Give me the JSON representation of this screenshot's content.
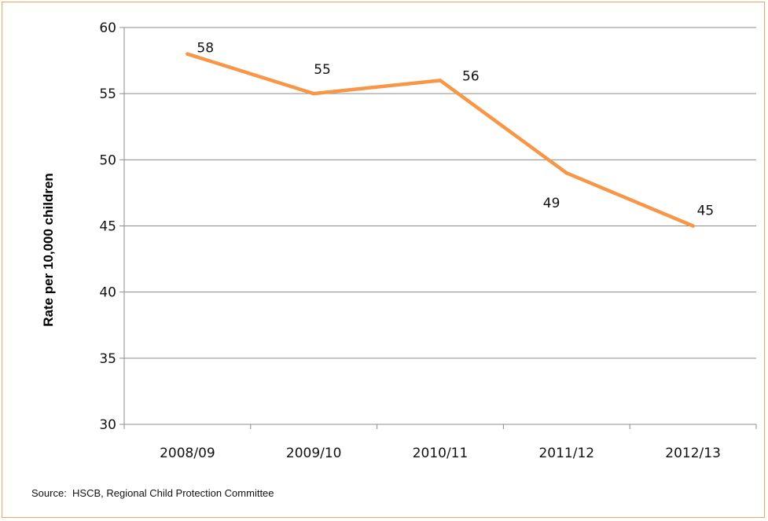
{
  "chart_data": {
    "type": "line",
    "categories": [
      "2008/09",
      "2009/10",
      "2010/11",
      "2011/12",
      "2012/13"
    ],
    "series": [
      {
        "values": [
          58,
          55,
          56,
          49,
          45
        ],
        "color": "#f79646"
      }
    ],
    "data_labels": [
      "58",
      "55",
      "56",
      "49",
      "45"
    ],
    "title": "",
    "xlabel": "",
    "ylabel": "Rate per 10,000 children",
    "ylim": [
      30,
      60
    ],
    "yticks": [
      30,
      35,
      40,
      45,
      50,
      55,
      60
    ],
    "ytick_labels": [
      "30",
      "35",
      "40",
      "45",
      "50",
      "55",
      "60"
    ],
    "grid": "horizontal",
    "legend": "none"
  },
  "source": "Source:  HSCB, Regional Child Protection Committee",
  "colors": {
    "frame_border": "#f4a460",
    "gridline": "#8c8c8c",
    "axis": "#8c8c8c"
  }
}
